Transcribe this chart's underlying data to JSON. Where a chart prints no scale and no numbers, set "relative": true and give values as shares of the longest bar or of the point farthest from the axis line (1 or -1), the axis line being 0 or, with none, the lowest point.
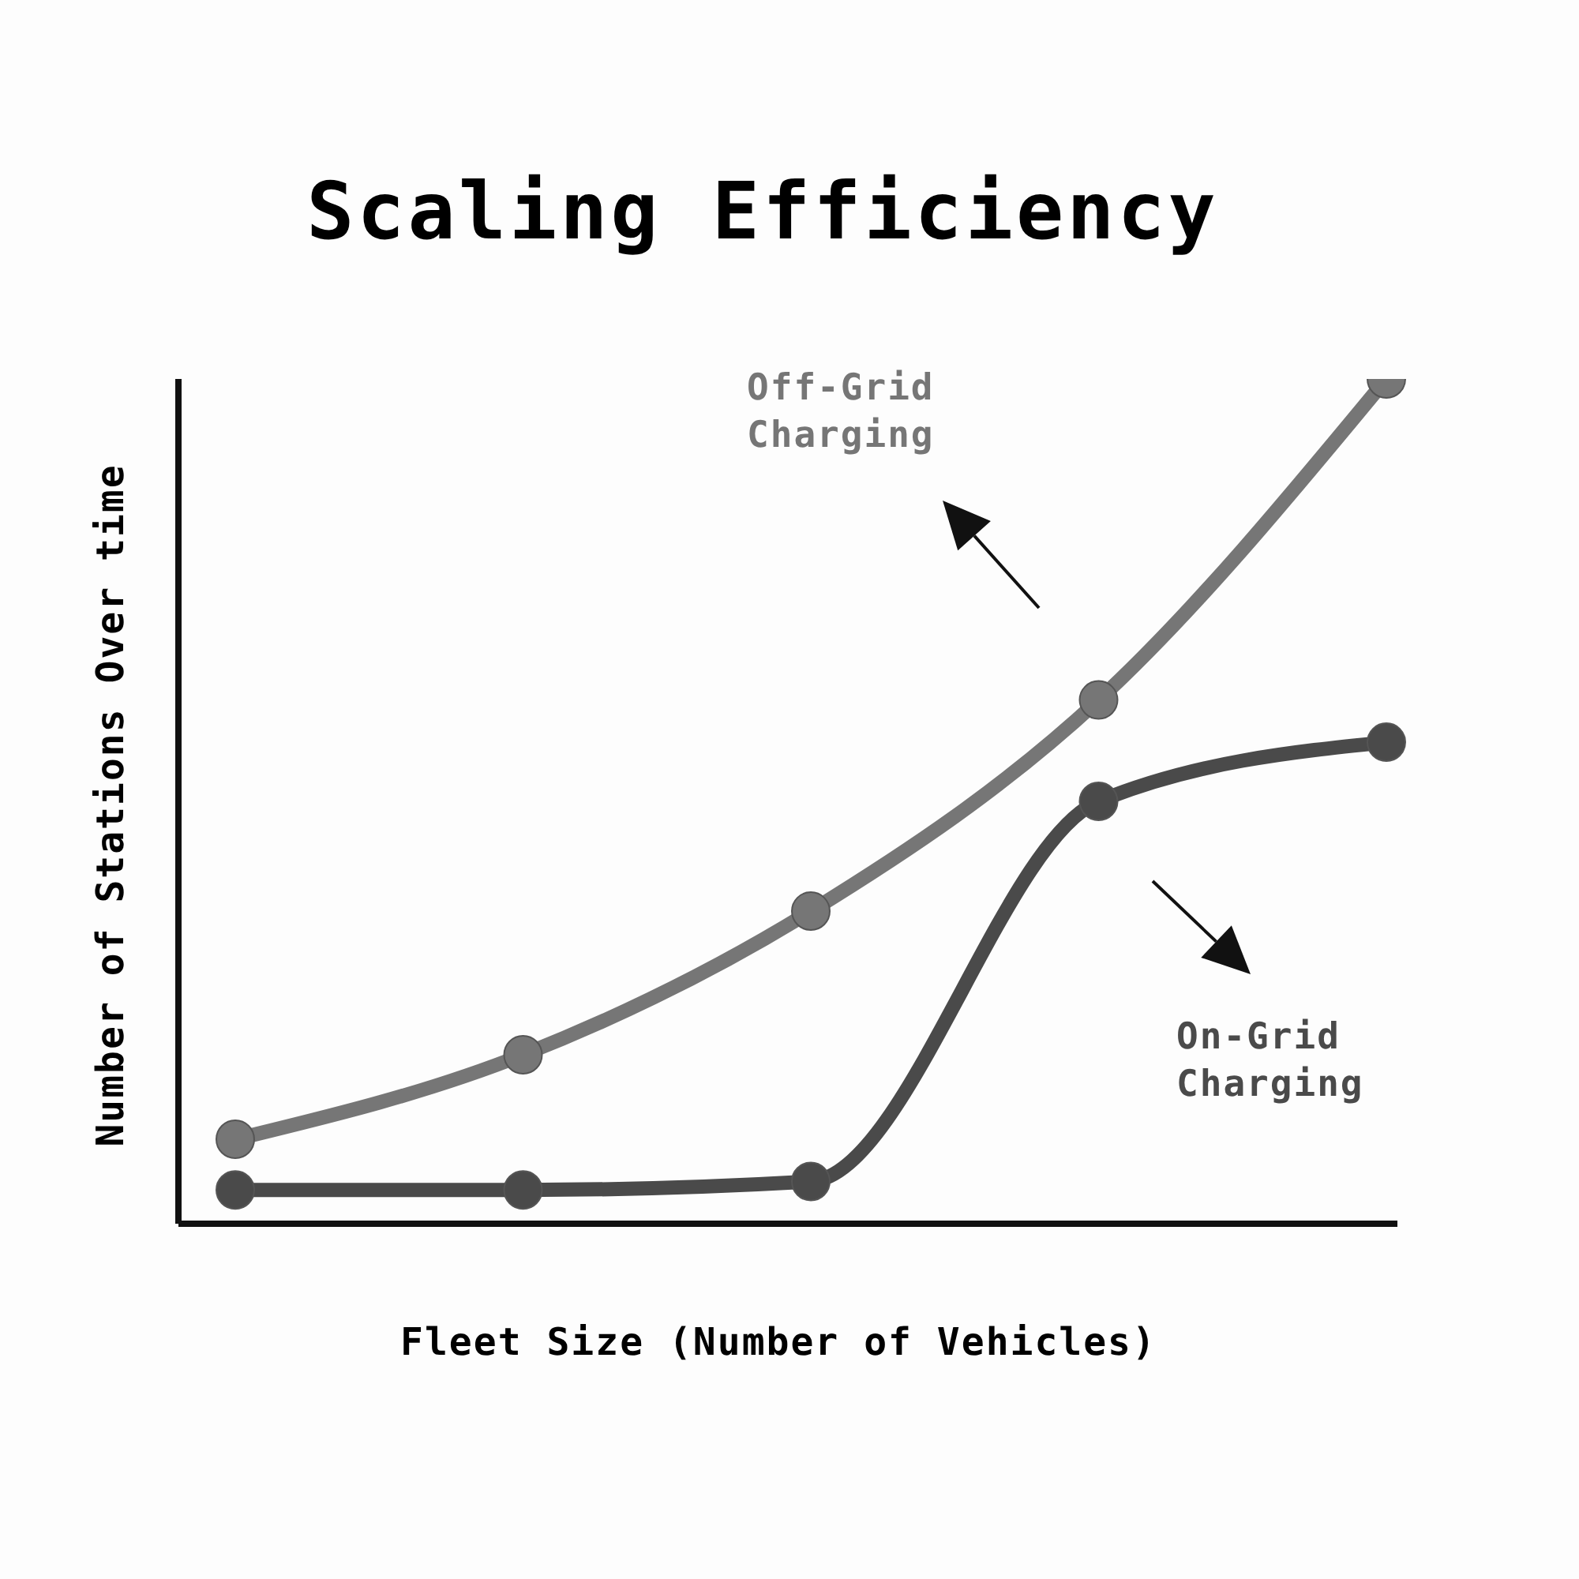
{
  "chart_data": {
    "type": "line",
    "title": "Scaling Efficiency",
    "xlabel": "Fleet Size (Number of Vehicles)",
    "ylabel": "Number of Stations Over time",
    "relative": true,
    "categories": [
      null,
      null,
      null,
      null,
      null
    ],
    "marker": "circle",
    "grid": false,
    "legend": false,
    "series": [
      {
        "name": "Off-Grid Charging",
        "color": "#767676",
        "values": [
          0.1,
          0.2,
          0.37,
          0.62,
          1
        ]
      },
      {
        "name": "On-Grid Charging",
        "color": "#4a4a4a",
        "values": [
          0.04,
          0.04,
          0.05,
          0.5,
          0.57
        ]
      }
    ]
  }
}
